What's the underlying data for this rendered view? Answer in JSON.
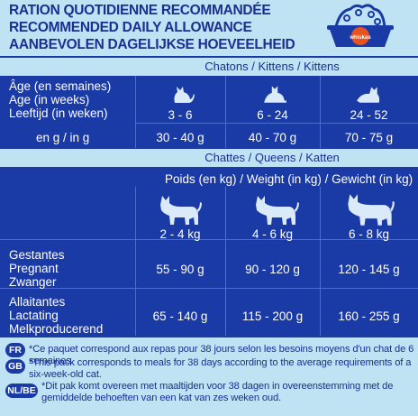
{
  "header": {
    "title_fr": "RATION QUOTIDIENNE RECOMMANDÉE",
    "title_en": "RECOMMENDED DAILY ALLOWANCE",
    "title_nl": "AANBEVOLEN DAGELIJKSE HOEVEELHEID",
    "bowl_logo_text": "whiskas"
  },
  "kittens": {
    "header": "Chatons / Kittens / Kittens",
    "age_label_fr": "Âge (en semaines)",
    "age_label_en": "Age (in weeks)",
    "age_label_nl": "Leeftijd (in weken)",
    "grams_label": "en g / in g",
    "columns": [
      {
        "age": "3 - 6",
        "amount": "30 - 40 g"
      },
      {
        "age": "6 - 24",
        "amount": "40 - 70 g"
      },
      {
        "age": "24 - 52",
        "amount": "70 - 75 g"
      }
    ]
  },
  "queens": {
    "header": "Chattes / Queens / Katten",
    "weight_label": "Poids (en kg) / Weight (in kg) / Gewicht (in kg)",
    "weights": [
      "2 - 4 kg",
      "4 - 6 kg",
      "6 - 8 kg"
    ],
    "pregnant": {
      "label_fr": "Gestantes",
      "label_en": "Pregnant",
      "label_nl": "Zwanger",
      "values": [
        "55 - 90 g",
        "90 - 120 g",
        "120 - 145 g"
      ]
    },
    "lactating": {
      "label_fr": "Allaitantes",
      "label_en": "Lactating",
      "label_nl": "Melkproducerend",
      "values": [
        "65 - 140 g",
        "115 - 200 g",
        "160 - 255 g"
      ]
    }
  },
  "footer": {
    "fr": {
      "badge": "FR",
      "text": "*Ce paquet correspond aux repas pour 38 jours selon les besoins moyens d'un chat de 6 semaines."
    },
    "gb": {
      "badge": "GB",
      "text": "*This pack corresponds to meals for 38 days according to the average requirements of a six-week-old cat."
    },
    "nlbe": {
      "badge": "NL/BE",
      "text": "*Dit pak komt overeen met maaltijden voor 38 dagen in overeenstemming met de gemiddelde behoeften van een kat van zes weken oud."
    }
  }
}
